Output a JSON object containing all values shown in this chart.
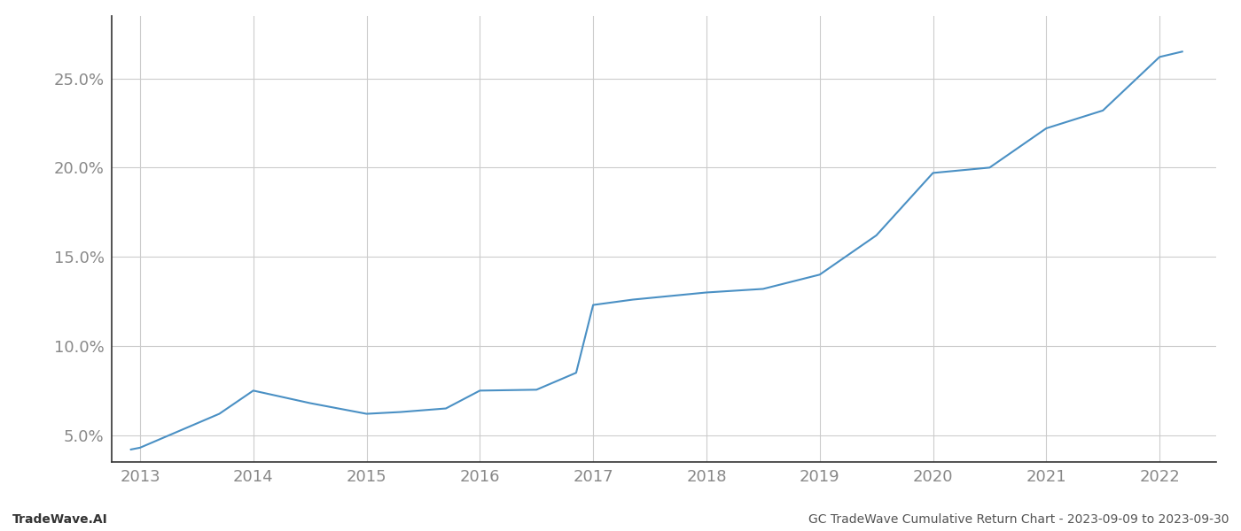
{
  "x_years": [
    2012.92,
    2013.0,
    2013.7,
    2014.0,
    2014.5,
    2015.0,
    2015.3,
    2015.7,
    2016.0,
    2016.5,
    2016.85,
    2017.0,
    2017.35,
    2018.0,
    2018.5,
    2019.0,
    2019.5,
    2020.0,
    2020.5,
    2021.0,
    2021.5,
    2022.0,
    2022.2
  ],
  "y_values": [
    4.2,
    4.3,
    6.2,
    7.5,
    6.8,
    6.2,
    6.3,
    6.5,
    7.5,
    7.55,
    8.5,
    12.3,
    12.6,
    13.0,
    13.2,
    14.0,
    16.2,
    19.7,
    20.0,
    22.2,
    23.2,
    26.2,
    26.5
  ],
  "x_ticks": [
    2013,
    2014,
    2015,
    2016,
    2017,
    2018,
    2019,
    2020,
    2021,
    2022
  ],
  "ylim_min": 3.5,
  "ylim_max": 28.5,
  "y_ticks": [
    5.0,
    10.0,
    15.0,
    20.0,
    25.0
  ],
  "line_color": "#4a90c4",
  "line_width": 1.5,
  "background_color": "#ffffff",
  "grid_color": "#cccccc",
  "spine_color": "#333333",
  "tick_color": "#888888",
  "footer_left": "TradeWave.AI",
  "footer_right": "GC TradeWave Cumulative Return Chart - 2023-09-09 to 2023-09-30",
  "footer_fontsize": 10,
  "tick_fontsize": 13
}
